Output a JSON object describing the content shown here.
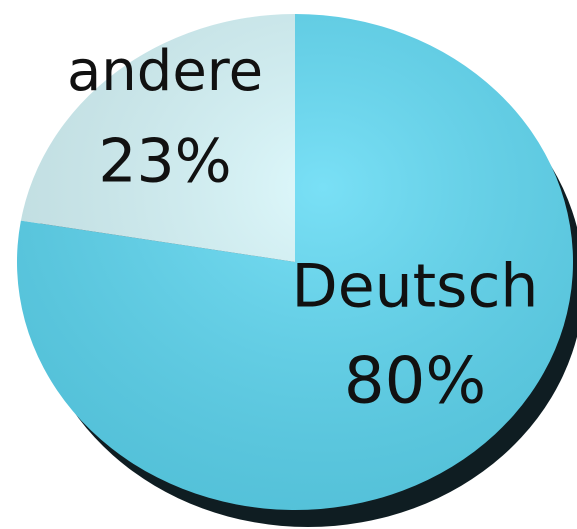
{
  "chart_data": {
    "type": "pie",
    "categories": [
      "Deutsch",
      "andere"
    ],
    "values": [
      80,
      23
    ],
    "value_labels": [
      "80%",
      "23%"
    ],
    "colors": [
      "#5cd9f4",
      "#d6f7fb"
    ]
  }
}
